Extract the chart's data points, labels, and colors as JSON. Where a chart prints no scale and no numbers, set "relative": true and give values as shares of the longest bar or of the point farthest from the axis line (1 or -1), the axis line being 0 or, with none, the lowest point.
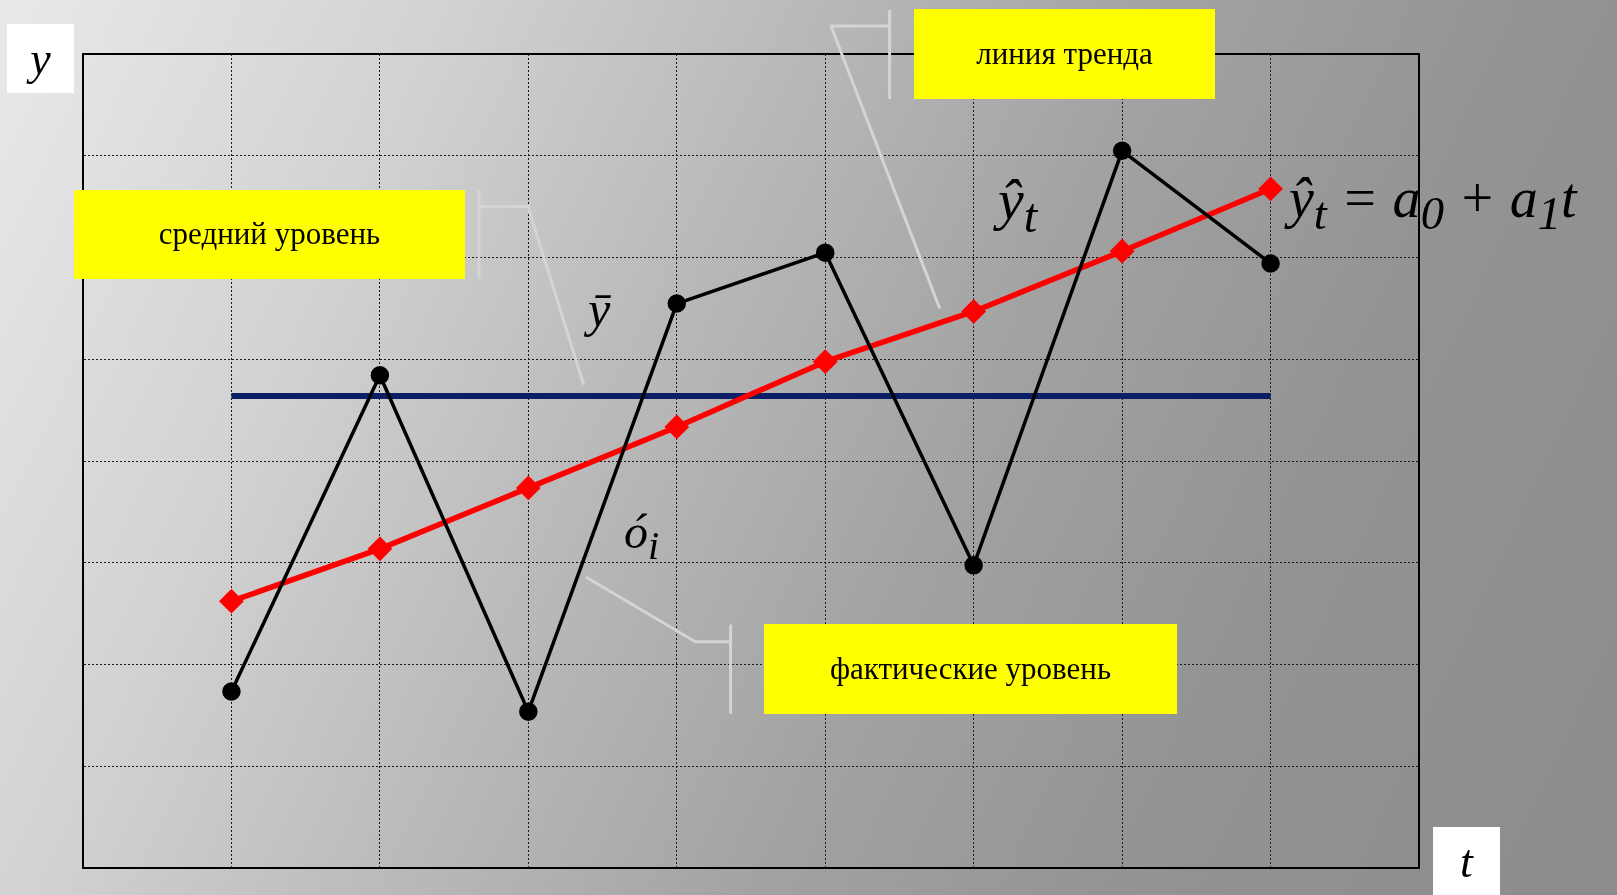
{
  "chart_data": {
    "type": "line",
    "xlabel": "t",
    "ylabel": "y",
    "relative": true,
    "grid": true,
    "tick_labels": false,
    "categories": [
      null,
      null,
      null,
      null,
      null,
      null,
      null,
      null,
      null,
      null
    ],
    "series": [
      {
        "color": "#000000",
        "marker": "circle",
        "values": [
          null,
          0.246,
          0.687,
          0.218,
          0.787,
          0.858,
          0.422,
          1,
          0.843,
          null
        ]
      },
      {
        "color": "#ff0000",
        "marker": "diamond",
        "values": [
          null,
          0.372,
          0.445,
          0.53,
          0.615,
          0.706,
          0.776,
          0.86,
          0.947,
          null
        ]
      }
    ],
    "ref_lines": [
      {
        "axis": "y",
        "value": 0.658,
        "color": "#0a1f66"
      }
    ],
    "annotations": [
      "линия тренда",
      "средний уровень",
      "фактические уровень",
      "ŷ$_{t}$",
      "ȳ",
      "ó$_{i}$",
      "ŷ$_{t}$ = a$_{0}$ + a$_{1}$t"
    ]
  }
}
